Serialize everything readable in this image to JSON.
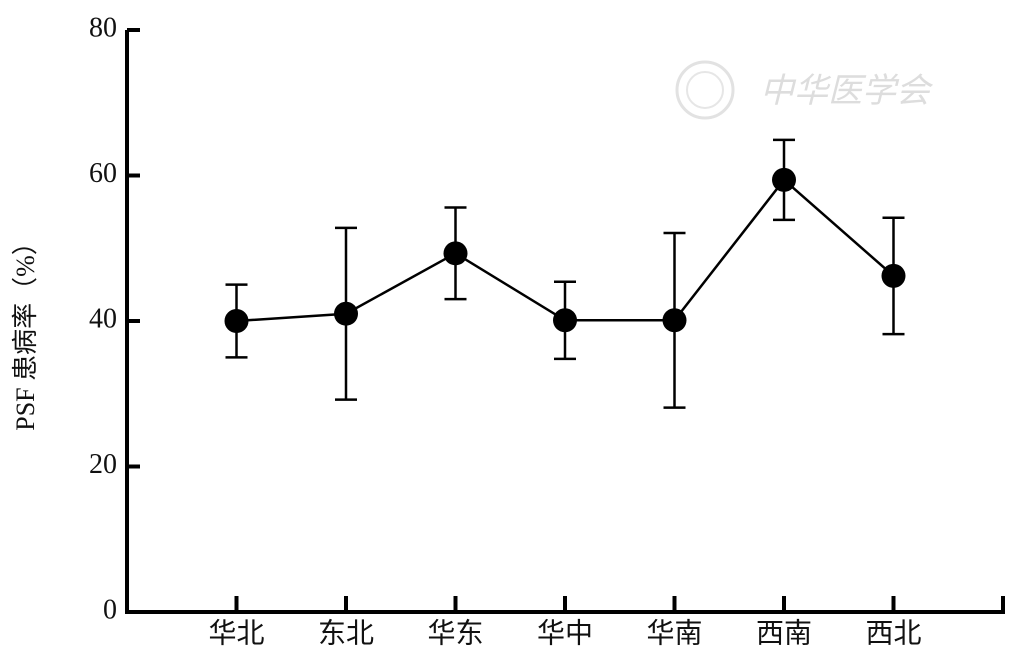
{
  "chart_data": {
    "type": "line",
    "y_label": "PSF 患病率（%）",
    "watermark": "中华医学会",
    "categories": [
      "华北",
      "东北",
      "华东",
      "华中",
      "华南",
      "西南",
      "西北"
    ],
    "values": [
      40.0,
      41.0,
      49.3,
      40.1,
      40.1,
      59.4,
      46.2
    ],
    "errors": [
      5.0,
      11.8,
      6.3,
      5.3,
      12.0,
      5.5,
      8.0
    ],
    "color": "#000000",
    "ylim": [
      0,
      80
    ],
    "yticks": [
      0,
      20,
      40,
      60,
      80
    ],
    "grid": false
  }
}
